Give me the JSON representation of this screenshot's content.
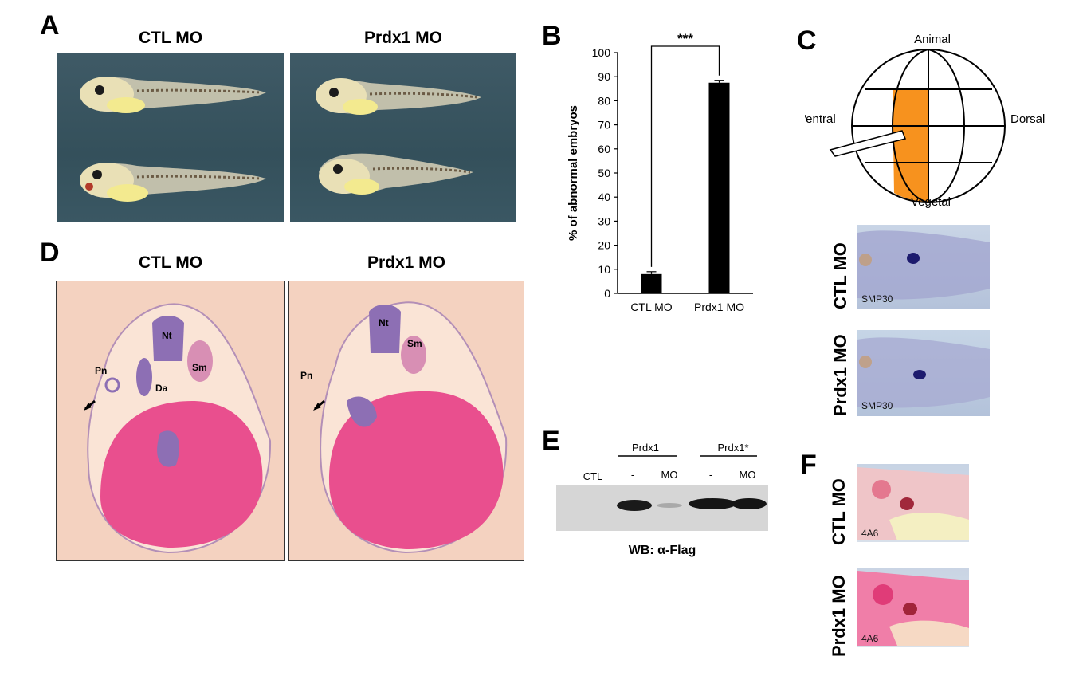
{
  "panels": {
    "A": {
      "letter": "A",
      "headers": [
        "CTL MO",
        "Prdx1 MO"
      ]
    },
    "B": {
      "letter": "B",
      "significance": "***"
    },
    "C": {
      "letter": "C",
      "diagram_labels": {
        "top": "Animal",
        "bottom": "Vegetal",
        "left": "Ventral",
        "right": "Dorsal"
      },
      "highlight_color": "#f7921e",
      "row_labels": [
        "CTL MO",
        "Prdx1 MO"
      ],
      "stain_label": "SMP30"
    },
    "D": {
      "letter": "D",
      "headers": [
        "CTL MO",
        "Prdx1 MO"
      ],
      "left_annotations": [
        "Nt",
        "Sm",
        "Pn",
        "Da"
      ],
      "right_annotations": [
        "Nt",
        "Sm",
        "Pn"
      ]
    },
    "E": {
      "letter": "E",
      "group_labels": [
        "Prdx1",
        "Prdx1*"
      ],
      "lane_labels": [
        "CTL",
        "-",
        "MO",
        "-",
        "MO"
      ],
      "caption": "WB: α-Flag"
    },
    "F": {
      "letter": "F",
      "row_labels": [
        "CTL MO",
        "Prdx1 MO"
      ],
      "stain_label": "4A6"
    }
  },
  "chart_data": {
    "type": "bar",
    "categories": [
      "CTL MO",
      "Prdx1 MO"
    ],
    "values": [
      8,
      87.5
    ],
    "errors": [
      1,
      1
    ],
    "ylabel": "% of abnormal embryos",
    "ylim": [
      0,
      100
    ],
    "yticks": [
      0,
      10,
      20,
      30,
      40,
      50,
      60,
      70,
      80,
      90,
      100
    ],
    "bar_color": "#000000",
    "grid": false
  }
}
